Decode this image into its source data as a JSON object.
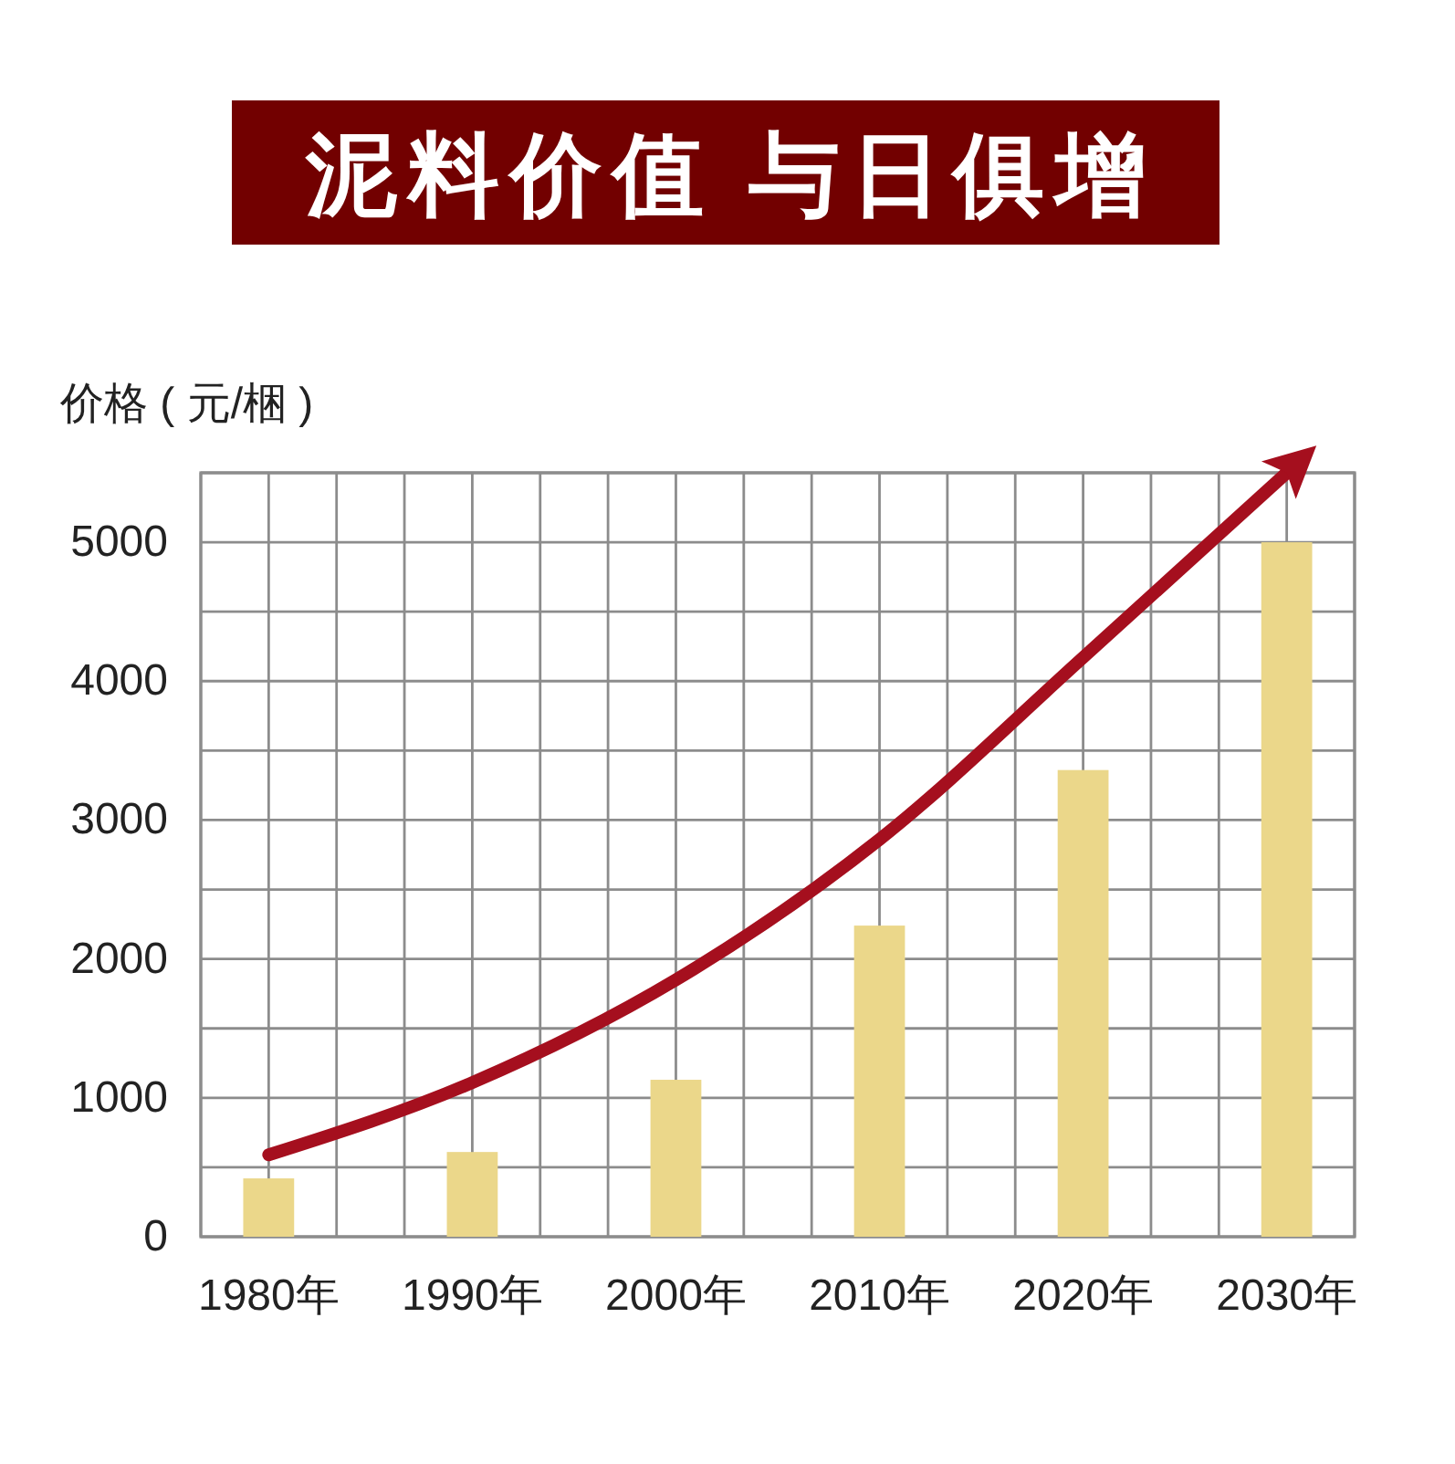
{
  "chart_data": {
    "type": "bar",
    "title": "泥料价值 与日俱增",
    "ylabel": "价格 ( 元/梱 )",
    "categories": [
      "1980年",
      "1990年",
      "2000年",
      "2010年",
      "2020年",
      "2030年"
    ],
    "series": [
      {
        "color": "#ebd78a",
        "values": [
          420,
          610,
          1130,
          2240,
          3360,
          5000
        ]
      },
      {
        "type": "line",
        "color": "#a50f1e",
        "values": [
          590,
          1110,
          1850,
          2860,
          4170,
          5500
        ]
      }
    ],
    "ylim": [
      0,
      5500
    ],
    "yticks": [
      0,
      {
        "value": 500,
        "label": null
      },
      1000,
      {
        "value": 1500,
        "label": null
      },
      2000,
      {
        "value": 2500,
        "label": null
      },
      3000,
      {
        "value": 3500,
        "label": null
      },
      4000,
      {
        "value": 4500,
        "label": null
      },
      5000,
      {
        "value": 5500,
        "label": null
      }
    ],
    "grid": true
  }
}
